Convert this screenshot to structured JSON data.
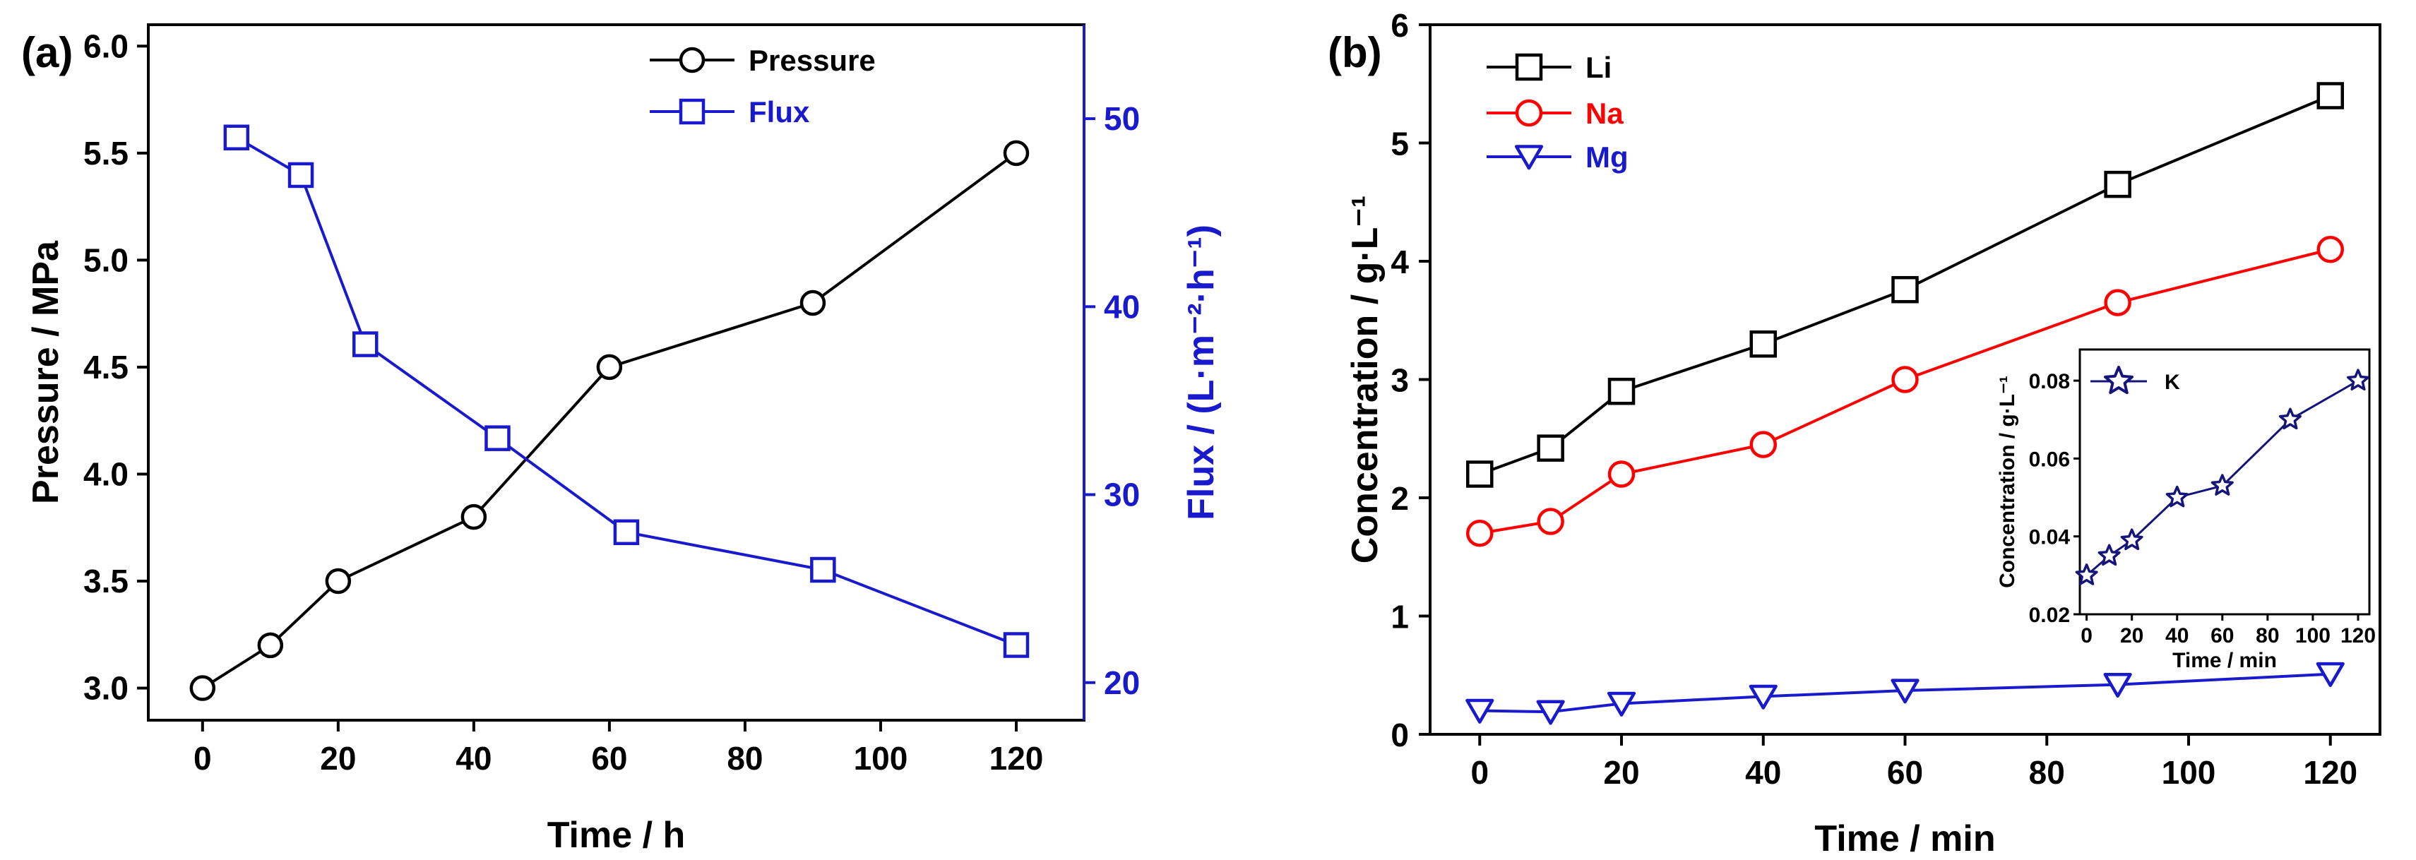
{
  "chart_data": [
    {
      "panel": "(a)",
      "type": "line",
      "xlabel": "Time / h",
      "ylabel": "Pressure / MPa",
      "y2label": "Flux / (L·m⁻²·h⁻¹)",
      "xlim": [
        -8,
        130
      ],
      "ylim": [
        2.85,
        6.1
      ],
      "y2lim": [
        18,
        55
      ],
      "xticks": [
        0,
        20,
        40,
        60,
        80,
        100,
        120
      ],
      "yticks": [
        3.0,
        3.5,
        4.0,
        4.5,
        5.0,
        5.5,
        6.0
      ],
      "y2ticks": [
        20,
        30,
        40,
        50
      ],
      "legend_position": "top-center",
      "series": [
        {
          "name": "Pressure",
          "axis": "left",
          "color": "#000000",
          "marker": "circle",
          "x": [
            0,
            10,
            20,
            40,
            60,
            90,
            120
          ],
          "y": [
            3.0,
            3.2,
            3.5,
            3.8,
            4.5,
            4.8,
            5.5
          ]
        },
        {
          "name": "Flux",
          "axis": "right",
          "color": "#1a1acd",
          "marker": "square",
          "x": [
            5,
            14.5,
            24,
            43.5,
            62.5,
            91.5,
            120
          ],
          "y": [
            49,
            47,
            38,
            33,
            28,
            26,
            22
          ]
        }
      ]
    },
    {
      "panel": "(b)",
      "type": "line",
      "xlabel": "Time / min",
      "ylabel": "Concentration / g·L⁻¹",
      "xlim": [
        -7,
        127
      ],
      "ylim": [
        0,
        6
      ],
      "xticks": [
        0,
        20,
        40,
        60,
        80,
        100,
        120
      ],
      "yticks": [
        0,
        1,
        2,
        3,
        4,
        5,
        6
      ],
      "legend_position": "top-left",
      "series": [
        {
          "name": "Li",
          "color": "#000000",
          "marker": "square",
          "x": [
            0,
            10,
            20,
            40,
            60,
            90,
            120
          ],
          "y": [
            2.2,
            2.42,
            2.9,
            3.3,
            3.76,
            4.65,
            5.4
          ]
        },
        {
          "name": "Na",
          "color": "#ff0000",
          "marker": "circle",
          "x": [
            0,
            10,
            20,
            40,
            60,
            90,
            120
          ],
          "y": [
            1.7,
            1.8,
            2.2,
            2.45,
            3.0,
            3.65,
            4.1
          ]
        },
        {
          "name": "Mg",
          "color": "#1a1acd",
          "marker": "triangle-down",
          "x": [
            0,
            10,
            20,
            40,
            60,
            90,
            120
          ],
          "y": [
            0.2,
            0.19,
            0.26,
            0.32,
            0.37,
            0.42,
            0.51
          ]
        }
      ],
      "inset": {
        "xlabel": "Time / min",
        "ylabel": "Concentration / g·L⁻¹",
        "xlim": [
          -3,
          125
        ],
        "ylim": [
          0.02,
          0.088
        ],
        "xticks": [
          0,
          20,
          40,
          60,
          80,
          100,
          120
        ],
        "yticks": [
          0.02,
          0.04,
          0.06,
          0.08
        ],
        "ytick_labels": [
          "0.02",
          "0.04",
          "0.06",
          "0.08"
        ],
        "series": [
          {
            "name": "K",
            "color": "#14147a",
            "marker": "star",
            "x": [
              0,
              10,
              20,
              40,
              60,
              90,
              120
            ],
            "y": [
              0.03,
              0.035,
              0.039,
              0.05,
              0.053,
              0.07,
              0.08
            ]
          }
        ]
      }
    }
  ]
}
